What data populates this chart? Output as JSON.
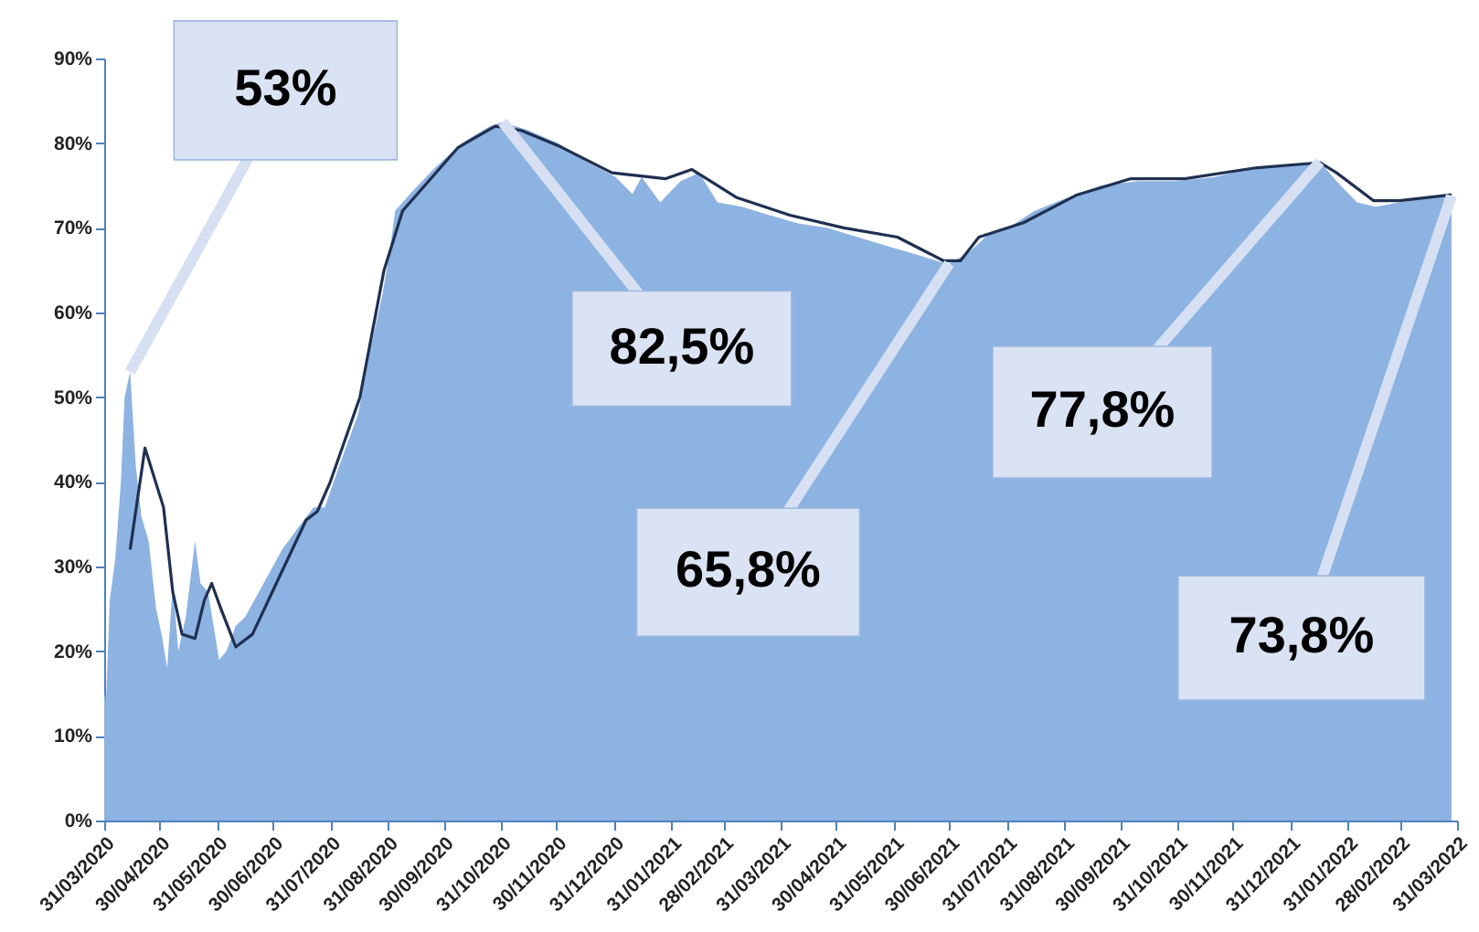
{
  "chart_data": {
    "type": "area",
    "series": [
      {
        "color": "#8db3e2",
        "x": [
          "2020-03-31",
          "2020-04-01",
          "2020-04-03",
          "2020-04-06",
          "2020-04-09",
          "2020-04-11",
          "2020-04-14",
          "2020-04-17",
          "2020-04-20",
          "2020-04-24",
          "2020-04-28",
          "2020-05-01",
          "2020-05-04",
          "2020-05-07",
          "2020-05-10",
          "2020-05-14",
          "2020-05-19",
          "2020-05-22",
          "2020-05-26",
          "2020-06-01",
          "2020-06-05",
          "2020-06-10",
          "2020-06-15",
          "2020-06-25",
          "2020-07-05",
          "2020-07-15",
          "2020-07-22",
          "2020-07-28",
          "2020-08-05",
          "2020-08-15",
          "2020-08-22",
          "2020-08-28",
          "2020-09-01",
          "2020-09-04",
          "2020-09-12",
          "2020-09-25",
          "2020-10-10",
          "2020-10-25",
          "2020-11-01",
          "2020-11-15",
          "2020-12-01",
          "2020-12-15",
          "2021-01-01",
          "2021-01-10",
          "2021-01-15",
          "2021-01-25",
          "2021-02-05",
          "2021-02-15",
          "2021-02-25",
          "2021-03-10",
          "2021-03-25",
          "2021-04-10",
          "2021-04-25",
          "2021-05-10",
          "2021-05-25",
          "2021-06-10",
          "2021-06-25",
          "2021-06-30",
          "2021-07-10",
          "2021-07-20",
          "2021-08-01",
          "2021-08-15",
          "2021-09-01",
          "2021-09-20",
          "2021-10-10",
          "2021-10-30",
          "2021-11-20",
          "2021-12-10",
          "2021-12-30",
          "2022-01-16",
          "2022-01-25",
          "2022-02-05",
          "2022-02-15",
          "2022-02-28",
          "2022-03-15",
          "2022-03-28"
        ],
        "values": [
          15,
          14,
          26,
          31,
          40,
          50,
          53,
          42,
          36,
          33,
          25,
          22,
          18,
          28,
          20,
          24,
          33,
          28,
          27,
          19,
          20,
          23,
          24,
          28,
          32,
          35,
          37,
          37,
          42,
          48,
          56,
          62,
          67,
          72,
          74,
          77,
          80,
          82,
          82.5,
          81.5,
          80,
          78,
          76,
          74,
          76,
          73,
          75.5,
          76.5,
          73,
          72.5,
          71.5,
          70.5,
          70,
          69,
          68,
          67,
          66,
          65.8,
          67,
          69,
          70,
          72,
          73.5,
          75,
          75.5,
          75.5,
          76,
          77,
          77.5,
          77.8,
          75.5,
          73,
          72.5,
          73,
          73.5,
          73.8
        ]
      },
      {
        "type": "line",
        "color": "#1f3050",
        "x": [
          "2020-04-14",
          "2020-04-22",
          "2020-05-02",
          "2020-05-07",
          "2020-05-12",
          "2020-05-19",
          "2020-05-24",
          "2020-05-28",
          "2020-06-02",
          "2020-06-10",
          "2020-06-19",
          "2020-07-04",
          "2020-07-18",
          "2020-07-24",
          "2020-07-31",
          "2020-08-16",
          "2020-08-29",
          "2020-09-08",
          "2020-09-24",
          "2020-10-08",
          "2020-10-28",
          "2020-11-11",
          "2020-12-01",
          "2020-12-30",
          "2021-01-28",
          "2021-02-11",
          "2021-03-07",
          "2021-04-05",
          "2021-05-04",
          "2021-06-02",
          "2021-06-27",
          "2021-07-06",
          "2021-07-16",
          "2021-08-09",
          "2021-09-07",
          "2021-10-06",
          "2021-11-04",
          "2021-12-13",
          "2022-01-16",
          "2022-01-25",
          "2022-02-14",
          "2022-02-28",
          "2022-03-28"
        ],
        "values": [
          32,
          44,
          37,
          27,
          22,
          21.5,
          26,
          28,
          25,
          20.5,
          22,
          29,
          35.5,
          36.5,
          40,
          50,
          65,
          72,
          76,
          79.5,
          82,
          81.5,
          79.7,
          76.5,
          75.8,
          76.9,
          73.6,
          71.5,
          70,
          68.9,
          66.1,
          66.1,
          68.9,
          70.6,
          73.9,
          75.8,
          75.8,
          77.1,
          77.7,
          76.5,
          73.2,
          73.2,
          73.9
        ]
      }
    ],
    "xlim": [
      "2020-03-31",
      "2022-03-31"
    ],
    "xticks": [
      {
        "value": "2020-03-31",
        "label": "31/03/2020"
      },
      {
        "value": "2020-04-30",
        "label": "30/04/2020"
      },
      {
        "value": "2020-05-31",
        "label": "31/05/2020"
      },
      {
        "value": "2020-06-30",
        "label": "30/06/2020"
      },
      {
        "value": "2020-07-31",
        "label": "31/07/2020"
      },
      {
        "value": "2020-08-31",
        "label": "31/08/2020"
      },
      {
        "value": "2020-09-30",
        "label": "30/09/2020"
      },
      {
        "value": "2020-10-31",
        "label": "31/10/2020"
      },
      {
        "value": "2020-11-30",
        "label": "30/11/2020"
      },
      {
        "value": "2020-12-31",
        "label": "31/12/2020"
      },
      {
        "value": "2021-01-31",
        "label": "31/01/2021"
      },
      {
        "value": "2021-02-28",
        "label": "28/02/2021"
      },
      {
        "value": "2021-03-31",
        "label": "31/03/2021"
      },
      {
        "value": "2021-04-30",
        "label": "30/04/2021"
      },
      {
        "value": "2021-05-31",
        "label": "31/05/2021"
      },
      {
        "value": "2021-06-30",
        "label": "30/06/2021"
      },
      {
        "value": "2021-07-31",
        "label": "31/07/2021"
      },
      {
        "value": "2021-08-31",
        "label": "31/08/2021"
      },
      {
        "value": "2021-09-30",
        "label": "30/09/2021"
      },
      {
        "value": "2021-10-31",
        "label": "31/10/2021"
      },
      {
        "value": "2021-11-30",
        "label": "30/11/2021"
      },
      {
        "value": "2021-12-31",
        "label": "31/12/2021"
      },
      {
        "value": "2022-01-31",
        "label": "31/01/2022"
      },
      {
        "value": "2022-02-28",
        "label": "28/02/2022"
      },
      {
        "value": "2022-03-31",
        "label": "31/03/2022"
      }
    ],
    "ylim": [
      0,
      90
    ],
    "yticks": [
      {
        "value": 0,
        "label": "0%"
      },
      {
        "value": 10,
        "label": "10%"
      },
      {
        "value": 20,
        "label": "20%"
      },
      {
        "value": 30,
        "label": "30%"
      },
      {
        "value": 40,
        "label": "40%"
      },
      {
        "value": 50,
        "label": "50%"
      },
      {
        "value": 60,
        "label": "60%"
      },
      {
        "value": 70,
        "label": "70%"
      },
      {
        "value": 80,
        "label": "80%"
      },
      {
        "value": 90,
        "label": "90%"
      }
    ],
    "grid": false,
    "annotations": [
      {
        "text": "53%",
        "x": "2020-04-14",
        "y": 53
      },
      {
        "text": "82,5%",
        "x": "2020-11-01",
        "y": 82.5
      },
      {
        "text": "65,8%",
        "x": "2021-06-30",
        "y": 65.8
      },
      {
        "text": "77,8%",
        "x": "2022-01-16",
        "y": 77.8
      },
      {
        "text": "73,8%",
        "x": "2022-03-28",
        "y": 73.8
      }
    ]
  }
}
